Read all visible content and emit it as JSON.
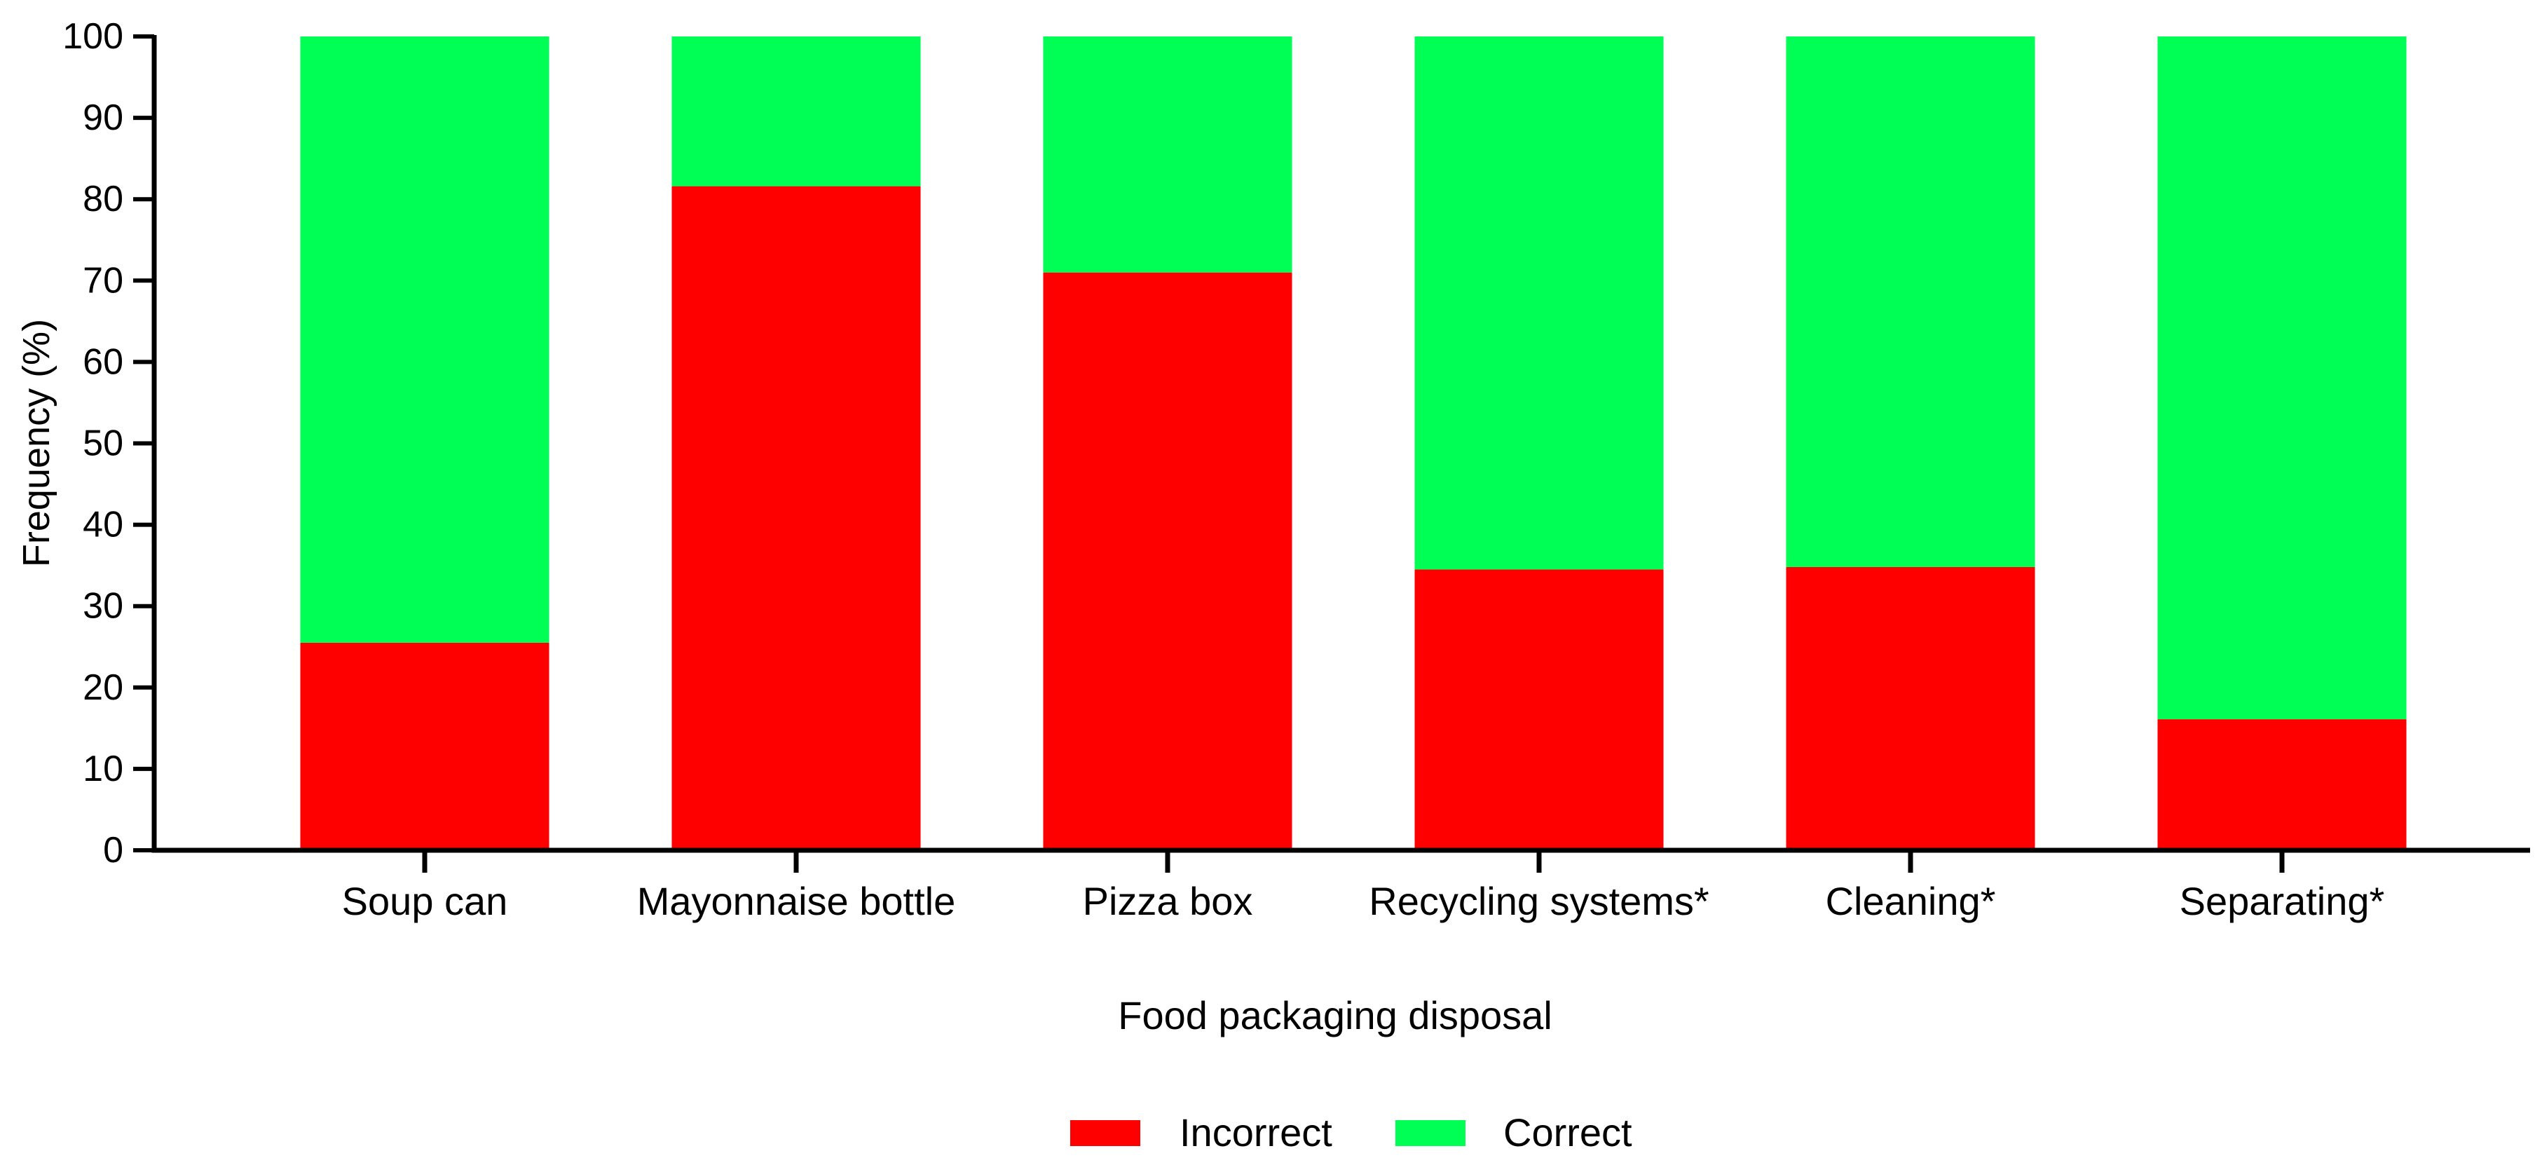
{
  "chart_data": {
    "type": "bar",
    "stacked": true,
    "categories": [
      "Soup can",
      "Mayonnaise bottle",
      "Pizza box",
      "Recycling systems*",
      "Cleaning*",
      "Separating*"
    ],
    "series": [
      {
        "name": "Incorrect",
        "color": "#ff0000",
        "values": [
          25.5,
          81.6,
          71.0,
          34.5,
          34.8,
          16.1
        ]
      },
      {
        "name": "Correct",
        "color": "#00ff55",
        "values": [
          74.5,
          18.4,
          29.0,
          65.5,
          65.2,
          83.9
        ]
      }
    ],
    "xlabel": "Food packaging disposal",
    "ylabel": "Frequency (%)",
    "ylim": [
      0,
      100
    ],
    "yticks": [
      0,
      10,
      20,
      30,
      40,
      50,
      60,
      70,
      80,
      90,
      100
    ],
    "grid": false,
    "legend_position": "bottom-center"
  }
}
